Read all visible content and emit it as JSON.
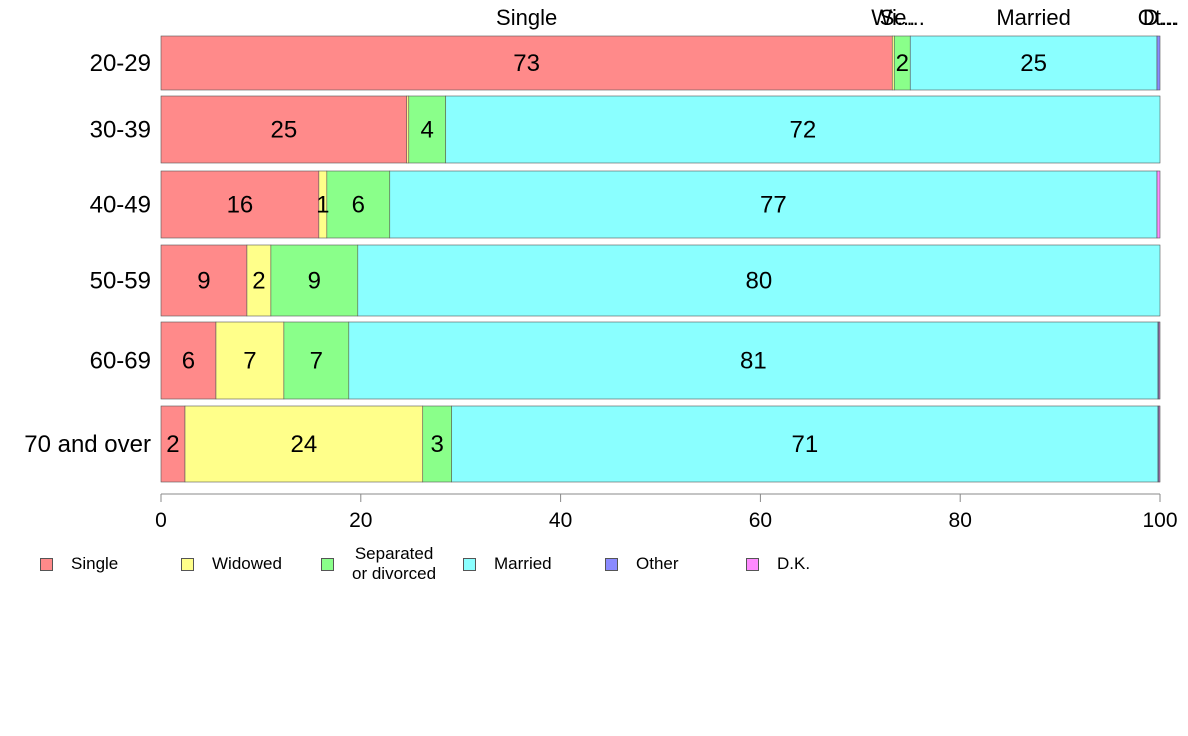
{
  "chart_data": {
    "type": "bar",
    "orientation": "horizontal",
    "stacked": true,
    "categories": [
      "20-29",
      "30-39",
      "40-49",
      "50-59",
      "60-69",
      "70 and over"
    ],
    "series": [
      {
        "name": "Single",
        "color": "#ff8a8a",
        "values": [
          73.2,
          24.6,
          15.8,
          8.6,
          5.5,
          2.4
        ]
      },
      {
        "name": "Widowed",
        "color": "#ffff8a",
        "values": [
          0.2,
          0.2,
          0.8,
          2.4,
          6.8,
          23.8
        ]
      },
      {
        "name": "Separated\n or divorced",
        "color": "#8aff8a",
        "values": [
          1.6,
          3.7,
          6.3,
          8.7,
          6.5,
          2.9
        ]
      },
      {
        "name": "Married",
        "color": "#8affff",
        "values": [
          24.7,
          71.5,
          76.8,
          80.3,
          81.0,
          70.7
        ]
      },
      {
        "name": "Other",
        "color": "#8a8aff",
        "values": [
          0.3,
          0.0,
          0.0,
          0.0,
          0.1,
          0.1
        ]
      },
      {
        "name": "D.K.",
        "color": "#ff8aff",
        "values": [
          0.0,
          0.0,
          0.3,
          0.0,
          0.1,
          0.1
        ]
      }
    ],
    "data_labels": [
      [
        "73",
        "",
        "2",
        "25",
        "",
        ""
      ],
      [
        "25",
        "",
        "4",
        "72",
        "",
        ""
      ],
      [
        "16",
        "1",
        "6",
        "77",
        "",
        ""
      ],
      [
        "9",
        "2",
        "9",
        "80",
        "",
        ""
      ],
      [
        "6",
        "7",
        "7",
        "81",
        "",
        ""
      ],
      [
        "2",
        "24",
        "3",
        "71",
        "",
        ""
      ]
    ],
    "top_labels": [
      {
        "text": "Single",
        "series": 0
      },
      {
        "text": "Wi...",
        "series": 1
      },
      {
        "text": "Se...",
        "series": 2
      },
      {
        "text": "Married",
        "series": 3
      },
      {
        "text": "Ot...",
        "series": 4
      },
      {
        "text": "D...",
        "series": 5
      }
    ],
    "xlim": [
      0,
      100
    ],
    "xticks": [
      "0",
      "20",
      "40",
      "60",
      "80",
      "100"
    ],
    "xlabel": "",
    "ylabel": "",
    "title": "",
    "grid": false,
    "legend_position": "bottom-left"
  }
}
